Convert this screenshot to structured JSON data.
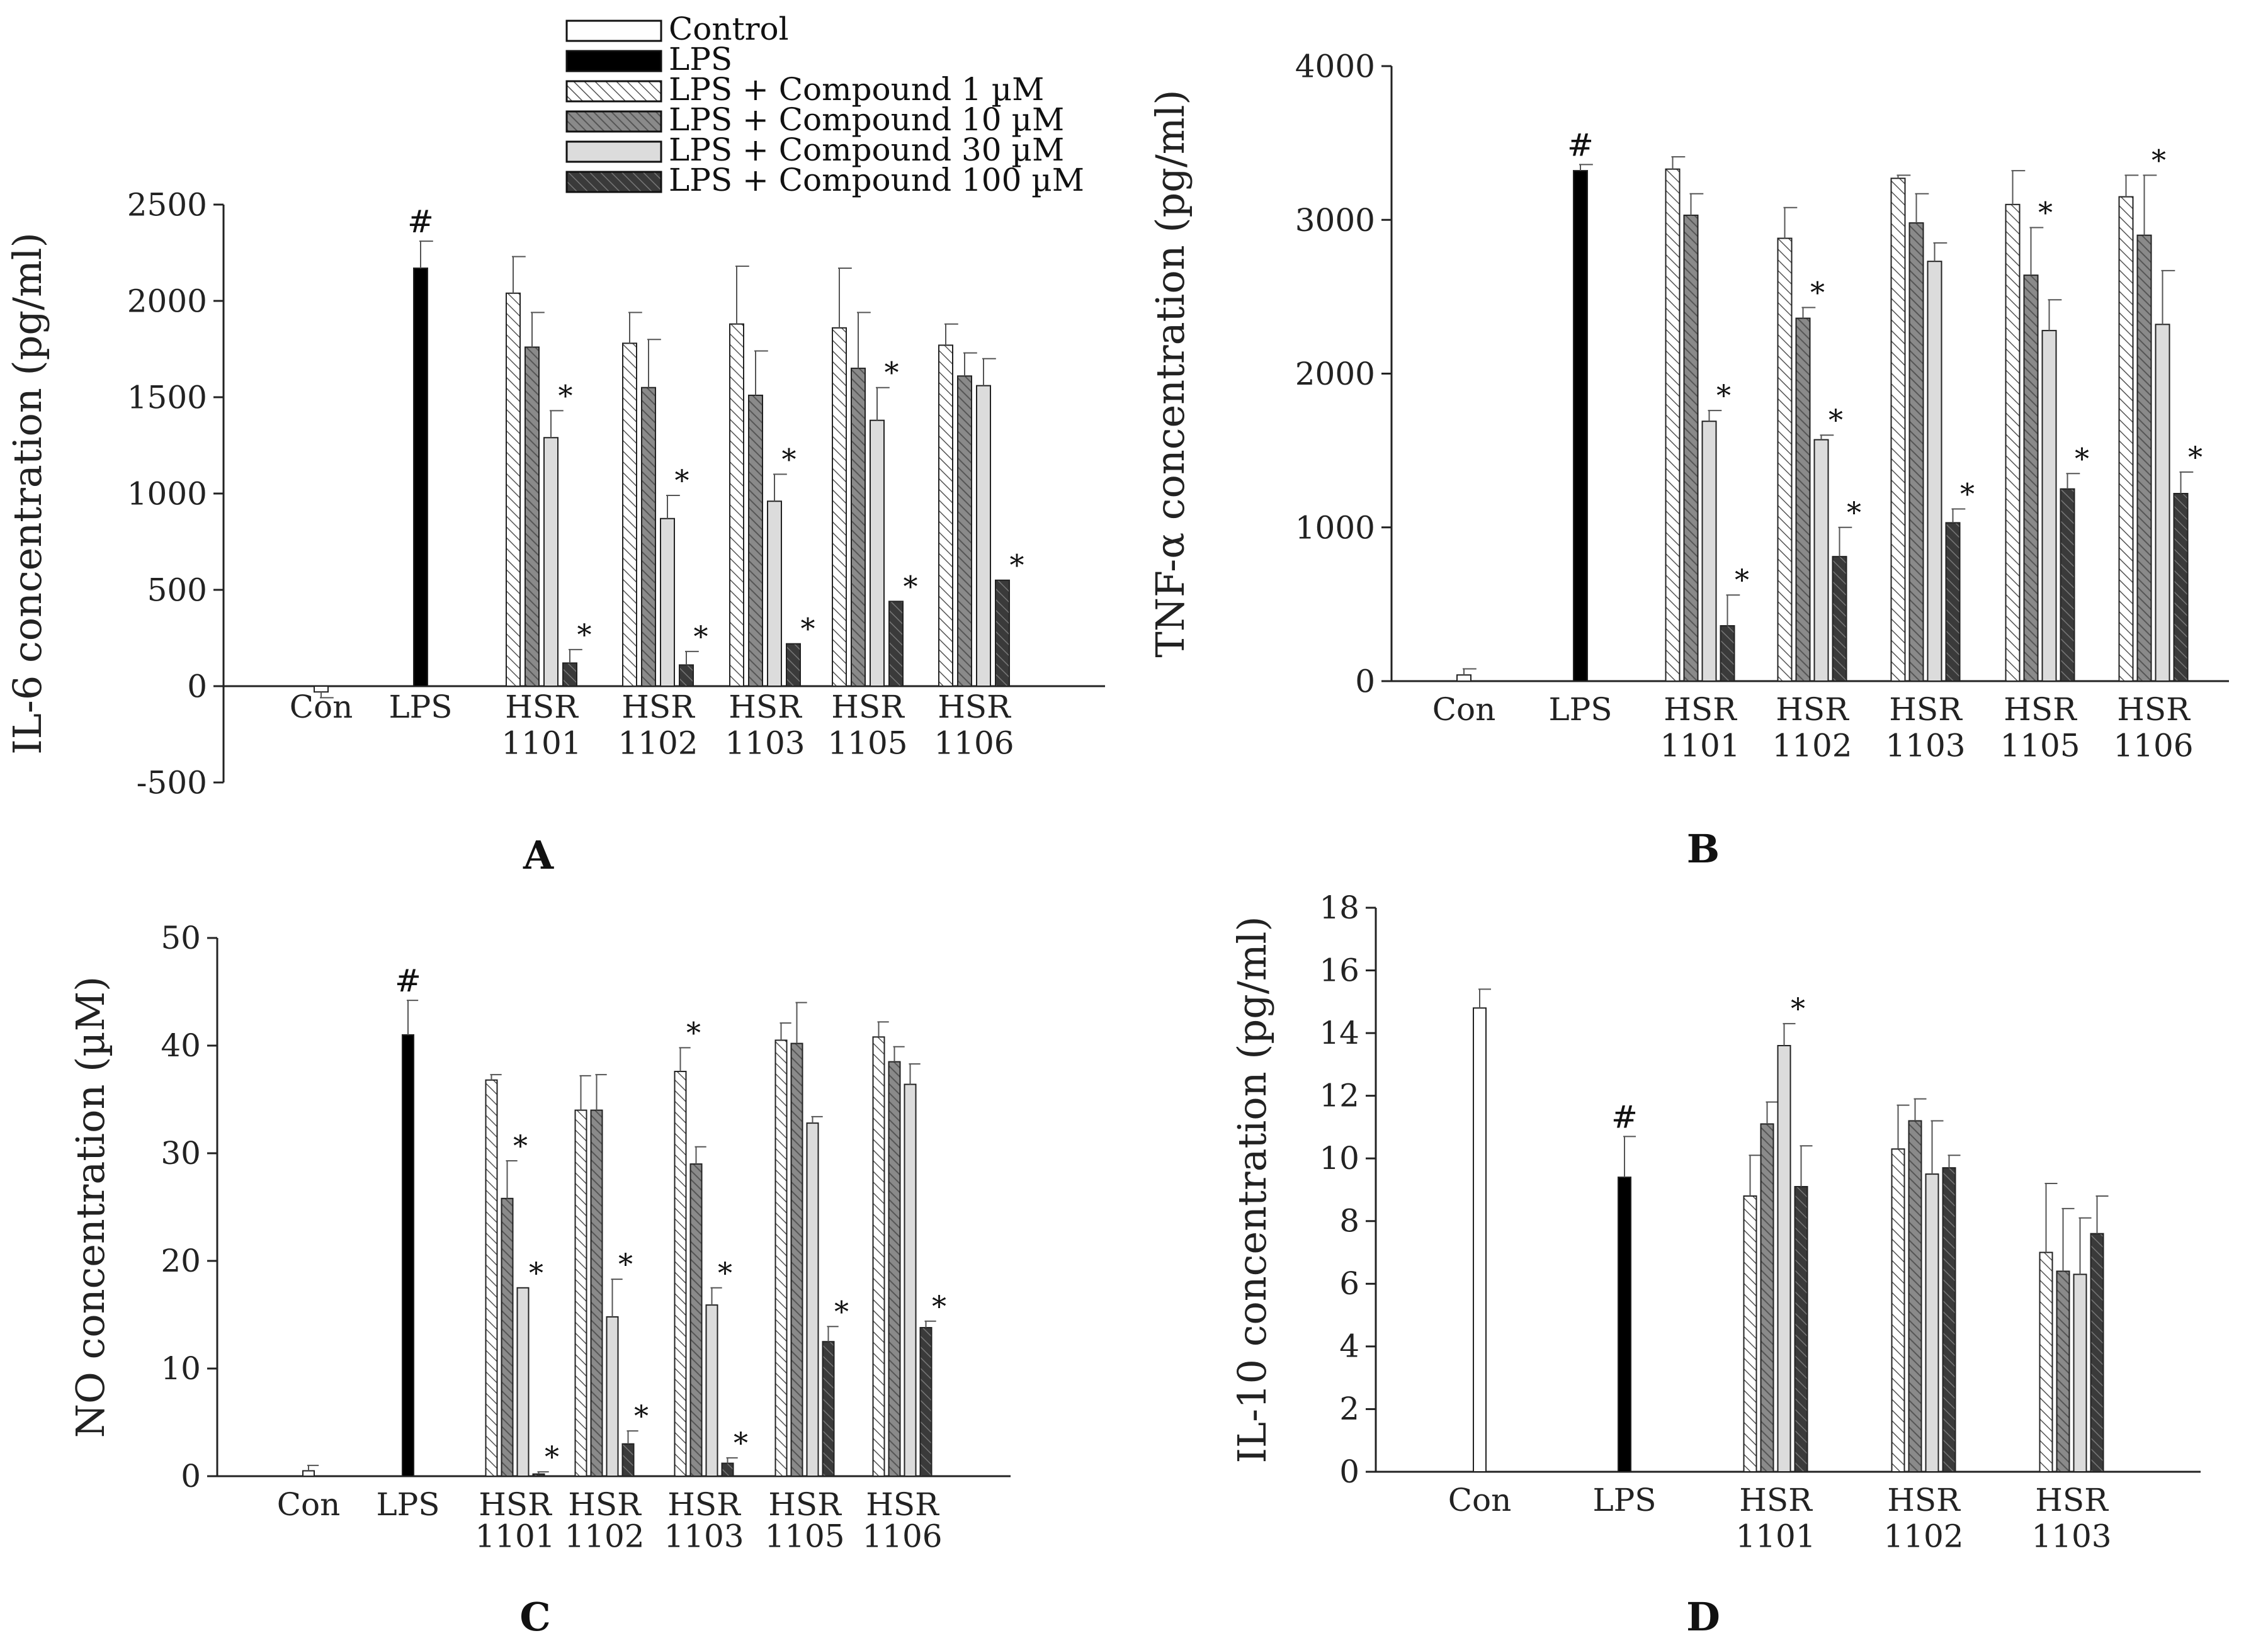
{
  "figure": {
    "legend": [
      {
        "label": "Control",
        "style": "control"
      },
      {
        "label": "LPS",
        "style": "lps"
      },
      {
        "label": "LPS + Compound 1 µM",
        "style": "c1"
      },
      {
        "label": "LPS + Compound 10 µM",
        "style": "c10"
      },
      {
        "label": "LPS + Compound 30 µM",
        "style": "c30"
      },
      {
        "label": "LPS + Compound 100 µM",
        "style": "c100"
      }
    ]
  },
  "chart_data": [
    {
      "panel": "A",
      "type": "bar",
      "ylabel": "IL-6 concentration (pg/ml)",
      "xlabel": "",
      "ylim": [
        -500,
        2500
      ],
      "yticks": [
        -500,
        0,
        500,
        1000,
        1500,
        2000,
        2500
      ],
      "groups": [
        {
          "label": [
            "Con"
          ],
          "bars": [
            {
              "style": "control",
              "value": -30,
              "error": 30,
              "mark": ""
            }
          ]
        },
        {
          "label": [
            "LPS"
          ],
          "bars": [
            {
              "style": "lps",
              "value": 2170,
              "error": 140,
              "mark": "#"
            }
          ]
        },
        {
          "label": [
            "HSR",
            "1101"
          ],
          "bars": [
            {
              "style": "c1",
              "value": 2040,
              "error": 190,
              "mark": ""
            },
            {
              "style": "c10",
              "value": 1760,
              "error": 180,
              "mark": ""
            },
            {
              "style": "c30",
              "value": 1290,
              "error": 140,
              "mark": "*"
            },
            {
              "style": "c100",
              "value": 120,
              "error": 70,
              "mark": "*"
            }
          ]
        },
        {
          "label": [
            "HSR",
            "1102"
          ],
          "bars": [
            {
              "style": "c1",
              "value": 1780,
              "error": 160,
              "mark": ""
            },
            {
              "style": "c10",
              "value": 1550,
              "error": 250,
              "mark": ""
            },
            {
              "style": "c30",
              "value": 870,
              "error": 120,
              "mark": "*"
            },
            {
              "style": "c100",
              "value": 110,
              "error": 70,
              "mark": "*"
            }
          ]
        },
        {
          "label": [
            "HSR",
            "1103"
          ],
          "bars": [
            {
              "style": "c1",
              "value": 1880,
              "error": 300,
              "mark": ""
            },
            {
              "style": "c10",
              "value": 1510,
              "error": 230,
              "mark": ""
            },
            {
              "style": "c30",
              "value": 960,
              "error": 140,
              "mark": "*"
            },
            {
              "style": "c100",
              "value": 220,
              "error": 0,
              "mark": "*"
            }
          ]
        },
        {
          "label": [
            "HSR",
            "1105"
          ],
          "bars": [
            {
              "style": "c1",
              "value": 1860,
              "error": 310,
              "mark": ""
            },
            {
              "style": "c10",
              "value": 1650,
              "error": 290,
              "mark": ""
            },
            {
              "style": "c30",
              "value": 1380,
              "error": 170,
              "mark": "*"
            },
            {
              "style": "c100",
              "value": 440,
              "error": 0,
              "mark": "*"
            }
          ]
        },
        {
          "label": [
            "HSR",
            "1106"
          ],
          "bars": [
            {
              "style": "c1",
              "value": 1770,
              "error": 110,
              "mark": ""
            },
            {
              "style": "c10",
              "value": 1610,
              "error": 120,
              "mark": ""
            },
            {
              "style": "c30",
              "value": 1560,
              "error": 140,
              "mark": ""
            },
            {
              "style": "c100",
              "value": 550,
              "error": 0,
              "mark": "*"
            }
          ]
        }
      ]
    },
    {
      "panel": "B",
      "type": "bar",
      "ylabel": "TNF-α concentration (pg/ml)",
      "xlabel": "",
      "ylim": [
        0,
        4000
      ],
      "yticks": [
        0,
        1000,
        2000,
        3000,
        4000
      ],
      "groups": [
        {
          "label": [
            "Con"
          ],
          "bars": [
            {
              "style": "control",
              "value": 40,
              "error": 40,
              "mark": ""
            }
          ]
        },
        {
          "label": [
            "LPS"
          ],
          "bars": [
            {
              "style": "lps",
              "value": 3320,
              "error": 40,
              "mark": "#"
            }
          ]
        },
        {
          "label": [
            "HSR",
            "1101"
          ],
          "bars": [
            {
              "style": "c1",
              "value": 3330,
              "error": 80,
              "mark": ""
            },
            {
              "style": "c10",
              "value": 3030,
              "error": 140,
              "mark": ""
            },
            {
              "style": "c30",
              "value": 1690,
              "error": 70,
              "mark": "*"
            },
            {
              "style": "c100",
              "value": 360,
              "error": 200,
              "mark": "*"
            }
          ]
        },
        {
          "label": [
            "HSR",
            "1102"
          ],
          "bars": [
            {
              "style": "c1",
              "value": 2880,
              "error": 200,
              "mark": ""
            },
            {
              "style": "c10",
              "value": 2360,
              "error": 70,
              "mark": "*"
            },
            {
              "style": "c30",
              "value": 1570,
              "error": 30,
              "mark": "*"
            },
            {
              "style": "c100",
              "value": 810,
              "error": 190,
              "mark": "*"
            }
          ]
        },
        {
          "label": [
            "HSR",
            "1103"
          ],
          "bars": [
            {
              "style": "c1",
              "value": 3270,
              "error": 20,
              "mark": ""
            },
            {
              "style": "c10",
              "value": 2980,
              "error": 190,
              "mark": ""
            },
            {
              "style": "c30",
              "value": 2730,
              "error": 120,
              "mark": ""
            },
            {
              "style": "c100",
              "value": 1030,
              "error": 90,
              "mark": "*"
            }
          ]
        },
        {
          "label": [
            "HSR",
            "1105"
          ],
          "bars": [
            {
              "style": "c1",
              "value": 3100,
              "error": 220,
              "mark": ""
            },
            {
              "style": "c10",
              "value": 2640,
              "error": 310,
              "mark": "*"
            },
            {
              "style": "c30",
              "value": 2280,
              "error": 200,
              "mark": ""
            },
            {
              "style": "c100",
              "value": 1250,
              "error": 100,
              "mark": "*"
            }
          ]
        },
        {
          "label": [
            "HSR",
            "1106"
          ],
          "bars": [
            {
              "style": "c1",
              "value": 3150,
              "error": 140,
              "mark": ""
            },
            {
              "style": "c10",
              "value": 2900,
              "error": 390,
              "mark": "*"
            },
            {
              "style": "c30",
              "value": 2320,
              "error": 350,
              "mark": ""
            },
            {
              "style": "c100",
              "value": 1220,
              "error": 140,
              "mark": "*"
            }
          ]
        }
      ]
    },
    {
      "panel": "C",
      "type": "bar",
      "ylabel": "NO concentration (µM)",
      "xlabel": "",
      "ylim": [
        0,
        50
      ],
      "yticks": [
        0,
        10,
        20,
        30,
        40,
        50
      ],
      "groups": [
        {
          "label": [
            "Con"
          ],
          "bars": [
            {
              "style": "control",
              "value": 0.5,
              "error": 0.5,
              "mark": ""
            }
          ]
        },
        {
          "label": [
            "LPS"
          ],
          "bars": [
            {
              "style": "lps",
              "value": 41,
              "error": 3.2,
              "mark": "#"
            }
          ]
        },
        {
          "label": [
            "HSR",
            "1101"
          ],
          "bars": [
            {
              "style": "c1",
              "value": 36.8,
              "error": 0.5,
              "mark": ""
            },
            {
              "style": "c10",
              "value": 25.8,
              "error": 3.5,
              "mark": "*"
            },
            {
              "style": "c30",
              "value": 17.5,
              "error": 0,
              "mark": "*"
            },
            {
              "style": "c100",
              "value": 0.2,
              "error": 0.2,
              "mark": "*"
            }
          ]
        },
        {
          "label": [
            "HSR",
            "1102"
          ],
          "bars": [
            {
              "style": "c1",
              "value": 34,
              "error": 3.2,
              "mark": ""
            },
            {
              "style": "c10",
              "value": 34,
              "error": 3.3,
              "mark": ""
            },
            {
              "style": "c30",
              "value": 14.8,
              "error": 3.5,
              "mark": "*"
            },
            {
              "style": "c100",
              "value": 3,
              "error": 1.2,
              "mark": "*"
            }
          ]
        },
        {
          "label": [
            "HSR",
            "1103"
          ],
          "bars": [
            {
              "style": "c1",
              "value": 37.6,
              "error": 2.2,
              "mark": "*"
            },
            {
              "style": "c10",
              "value": 29,
              "error": 1.6,
              "mark": ""
            },
            {
              "style": "c30",
              "value": 15.9,
              "error": 1.6,
              "mark": "*"
            },
            {
              "style": "c100",
              "value": 1.2,
              "error": 0.5,
              "mark": "*"
            }
          ]
        },
        {
          "label": [
            "HSR",
            "1105"
          ],
          "bars": [
            {
              "style": "c1",
              "value": 40.5,
              "error": 1.6,
              "mark": ""
            },
            {
              "style": "c10",
              "value": 40.2,
              "error": 3.8,
              "mark": ""
            },
            {
              "style": "c30",
              "value": 32.8,
              "error": 0.6,
              "mark": ""
            },
            {
              "style": "c100",
              "value": 12.5,
              "error": 1.4,
              "mark": "*"
            }
          ]
        },
        {
          "label": [
            "HSR",
            "1106"
          ],
          "bars": [
            {
              "style": "c1",
              "value": 40.8,
              "error": 1.4,
              "mark": ""
            },
            {
              "style": "c10",
              "value": 38.5,
              "error": 1.4,
              "mark": ""
            },
            {
              "style": "c30",
              "value": 36.4,
              "error": 1.9,
              "mark": ""
            },
            {
              "style": "c100",
              "value": 13.8,
              "error": 0.6,
              "mark": "*"
            }
          ]
        }
      ]
    },
    {
      "panel": "D",
      "type": "bar",
      "ylabel": "IL-10 concentration (pg/ml)",
      "xlabel": "",
      "ylim": [
        0,
        18
      ],
      "yticks": [
        0,
        2,
        4,
        6,
        8,
        10,
        12,
        14,
        16,
        18
      ],
      "groups": [
        {
          "label": [
            "Con"
          ],
          "bars": [
            {
              "style": "control",
              "value": 14.8,
              "error": 0.6,
              "mark": ""
            }
          ]
        },
        {
          "label": [
            "LPS"
          ],
          "bars": [
            {
              "style": "lps",
              "value": 9.4,
              "error": 1.3,
              "mark": "#"
            }
          ]
        },
        {
          "label": [
            "HSR",
            "1101"
          ],
          "bars": [
            {
              "style": "c1",
              "value": 8.8,
              "error": 1.3,
              "mark": ""
            },
            {
              "style": "c10",
              "value": 11.1,
              "error": 0.7,
              "mark": ""
            },
            {
              "style": "c30",
              "value": 13.6,
              "error": 0.7,
              "mark": "*"
            },
            {
              "style": "c100",
              "value": 9.1,
              "error": 1.3,
              "mark": ""
            }
          ]
        },
        {
          "label": [
            "HSR",
            "1102"
          ],
          "bars": [
            {
              "style": "c1",
              "value": 10.3,
              "error": 1.4,
              "mark": ""
            },
            {
              "style": "c10",
              "value": 11.2,
              "error": 0.7,
              "mark": ""
            },
            {
              "style": "c30",
              "value": 9.5,
              "error": 1.7,
              "mark": ""
            },
            {
              "style": "c100",
              "value": 9.7,
              "error": 0.4,
              "mark": ""
            }
          ]
        },
        {
          "label": [
            "HSR",
            "1103"
          ],
          "bars": [
            {
              "style": "c1",
              "value": 7.0,
              "error": 2.2,
              "mark": ""
            },
            {
              "style": "c10",
              "value": 6.4,
              "error": 2.0,
              "mark": ""
            },
            {
              "style": "c30",
              "value": 6.3,
              "error": 1.8,
              "mark": ""
            },
            {
              "style": "c100",
              "value": 7.6,
              "error": 1.2,
              "mark": ""
            }
          ]
        }
      ]
    }
  ]
}
